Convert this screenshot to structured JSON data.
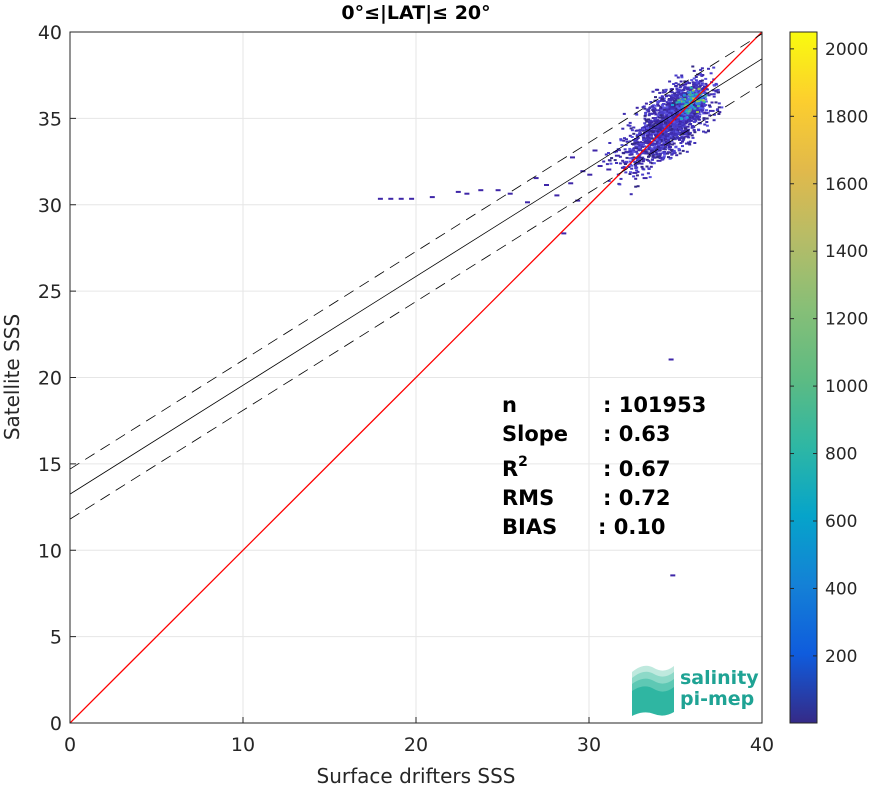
{
  "chart_data": {
    "type": "heatmap",
    "title": "0°≤|LAT|≤ 20°",
    "xlabel": "Surface drifters SSS",
    "ylabel": "Satellite SSS",
    "xlim": [
      0,
      40
    ],
    "ylim": [
      0,
      40
    ],
    "xticks": [
      "0",
      "10",
      "20",
      "30",
      "40"
    ],
    "yticks": [
      "0",
      "5",
      "10",
      "15",
      "20",
      "25",
      "30",
      "35",
      "40"
    ],
    "grid": true,
    "colorbar": {
      "colormap": "parula",
      "range": [
        1,
        2050
      ],
      "ticks": [
        "200",
        "400",
        "600",
        "800",
        "1000",
        "1200",
        "1400",
        "1600",
        "1800",
        "2000"
      ],
      "tick_values": [
        200,
        400,
        600,
        800,
        1000,
        1200,
        1400,
        1600,
        1800,
        2000
      ]
    },
    "lines": {
      "identity": {
        "color": "#ff0000",
        "x": [
          0,
          40
        ],
        "y": [
          0,
          40
        ]
      },
      "regression": {
        "color": "#000000",
        "style": "solid",
        "x": [
          0,
          40
        ],
        "y": [
          13.25,
          38.45
        ]
      },
      "upper_bound": {
        "color": "#000000",
        "style": "dashed",
        "x": [
          0,
          40
        ],
        "y": [
          14.7,
          39.9
        ]
      },
      "lower_bound": {
        "color": "#000000",
        "style": "dashed",
        "x": [
          0,
          40
        ],
        "y": [
          11.8,
          37.0
        ]
      }
    },
    "density_clusters": [
      {
        "x": 35.0,
        "y": 35.2,
        "sx": 0.9,
        "sy": 0.85,
        "n": 1500,
        "level": "low"
      },
      {
        "x": 33.3,
        "y": 33.6,
        "sx": 0.9,
        "sy": 0.8,
        "n": 450,
        "level": "low"
      },
      {
        "x": 35.8,
        "y": 36.0,
        "sx": 0.35,
        "sy": 0.35,
        "n": 120,
        "level": "high"
      }
    ],
    "scatter_points": [
      [
        17.8,
        30.4
      ],
      [
        18.4,
        30.4
      ],
      [
        19.0,
        30.4
      ],
      [
        19.6,
        30.4
      ],
      [
        20.8,
        30.5
      ],
      [
        22.8,
        30.7
      ],
      [
        23.6,
        30.9
      ],
      [
        24.6,
        30.9
      ],
      [
        25.3,
        30.7
      ],
      [
        26.3,
        30.2
      ],
      [
        26.8,
        31.6
      ],
      [
        28.0,
        30.6
      ],
      [
        28.8,
        31.3
      ],
      [
        29.2,
        30.3
      ],
      [
        29.5,
        32.0
      ],
      [
        28.4,
        28.4
      ],
      [
        30.5,
        32.3
      ],
      [
        31.0,
        32.1
      ],
      [
        29.9,
        31.8
      ],
      [
        28.9,
        32.8
      ],
      [
        34.6,
        21.1
      ],
      [
        34.7,
        8.6
      ],
      [
        33.1,
        31.6
      ],
      [
        27.4,
        31.2
      ],
      [
        22.3,
        30.8
      ],
      [
        30.2,
        33.2
      ],
      [
        31.5,
        32.9
      ],
      [
        32.5,
        31.9
      ],
      [
        33.9,
        32.6
      ],
      [
        35.5,
        34.0
      ]
    ],
    "annotations": {
      "n_label": "n",
      "n_value": ": 101953",
      "slope_label": "Slope",
      "slope_value": ": 0.63",
      "r2_label": "R",
      "r2_sup": "2",
      "r2_value": ": 0.67",
      "rms_label": "RMS",
      "rms_value": ": 0.72",
      "bias_label": "BIAS",
      "bias_value": ": 0.10"
    }
  },
  "logo": {
    "line1": "salinity",
    "line2": "pi-mep",
    "colors": [
      "#2fb6a2",
      "#5ec8b4",
      "#8dd9c8",
      "#bfe9de"
    ]
  }
}
